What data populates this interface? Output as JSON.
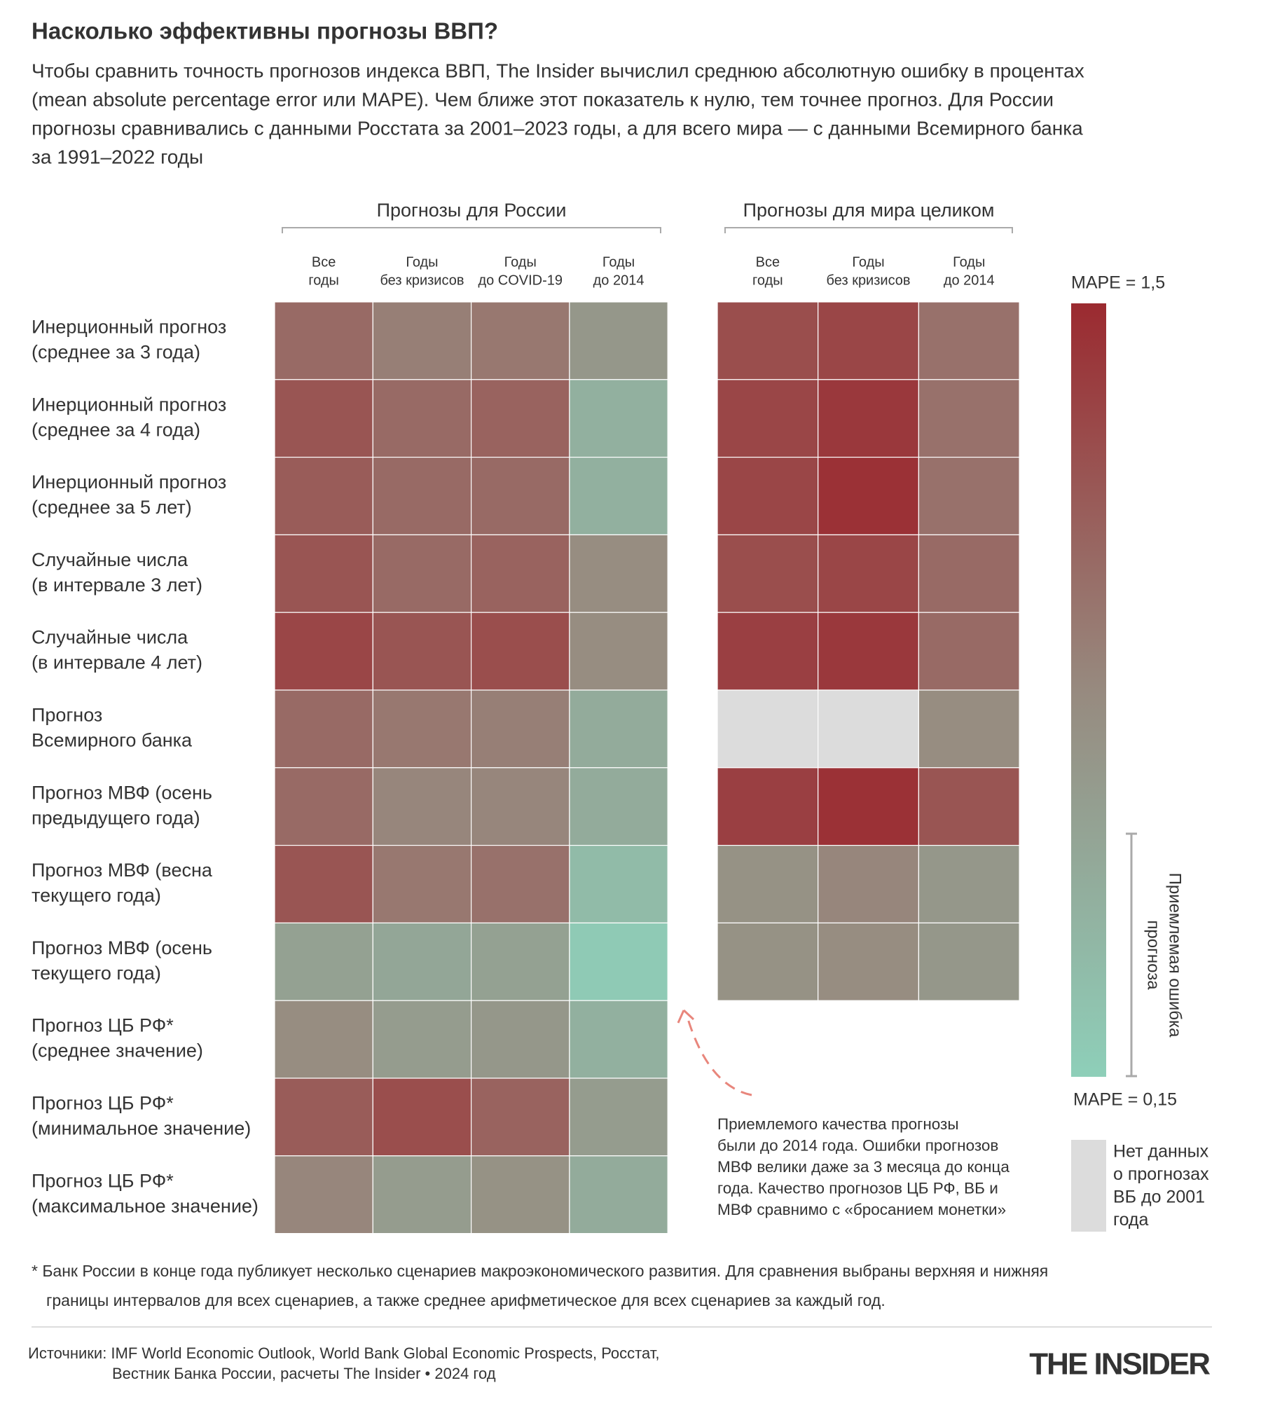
{
  "chart_data": {
    "type": "heatmap",
    "title": "Насколько эффективны прогнозы ВВП?",
    "subtitle": [
      "Чтобы сравнить точность прогнозов индекса ВВП, The Insider вычислил среднюю абсолютную ошибку в процентах",
      "(mean absolute percentage error или MAPE). Чем ближе этот показатель к нулю, тем точнее прогноз. Для России",
      "прогнозы сравнивались с данными Росстата за 2001–2023 годы, а для всего мира — с данными Всемирного банка",
      "за 1991–2022 годы"
    ],
    "row_labels": [
      [
        "Инерционный прогноз",
        "(среднее за 3 года)"
      ],
      [
        "Инерционный прогноз",
        "(среднее за 4 года)"
      ],
      [
        "Инерционный прогноз",
        "(среднее за 5 лет)"
      ],
      [
        "Случайные числа",
        "(в интервале 3 лет)"
      ],
      [
        "Случайные числа",
        "(в интервале 4 лет)"
      ],
      [
        "Прогноз",
        "Всемирного банка"
      ],
      [
        "Прогноз МВФ (осень",
        "предыдущего года)"
      ],
      [
        "Прогноз МВФ (весна",
        "текущего года)"
      ],
      [
        "Прогноз МВФ (осень",
        "текущего года)"
      ],
      [
        "Прогноз ЦБ РФ*",
        "(среднее значение)"
      ],
      [
        "Прогноз ЦБ РФ*",
        "(минимальное значение)"
      ],
      [
        "Прогноз ЦБ РФ*",
        "(максимальное значение)"
      ]
    ],
    "panels": [
      {
        "title": "Прогнозы для России",
        "columns": [
          [
            "Все",
            "годы"
          ],
          [
            "Годы",
            "без кризисов"
          ],
          [
            "Годы",
            "до COVID-19"
          ],
          [
            "Годы",
            "до 2014"
          ]
        ],
        "values": [
          [
            1.05,
            0.9,
            0.95,
            0.7
          ],
          [
            1.2,
            1.05,
            1.1,
            0.45
          ],
          [
            1.15,
            1.05,
            1.05,
            0.45
          ],
          [
            1.2,
            1.05,
            1.1,
            0.8
          ],
          [
            1.3,
            1.2,
            1.25,
            0.8
          ],
          [
            1.05,
            0.95,
            0.9,
            0.5
          ],
          [
            1.05,
            0.85,
            0.85,
            0.5
          ],
          [
            1.2,
            0.95,
            1.0,
            0.35
          ],
          [
            0.6,
            0.55,
            0.6,
            0.2
          ],
          [
            0.8,
            0.65,
            0.7,
            0.45
          ],
          [
            1.15,
            1.25,
            1.1,
            0.65
          ],
          [
            0.85,
            0.65,
            0.75,
            0.5
          ]
        ]
      },
      {
        "title": "Прогнозы для мира целиком",
        "columns": [
          [
            "Все",
            "годы"
          ],
          [
            "Годы",
            "без кризисов"
          ],
          [
            "Годы",
            "до 2014"
          ]
        ],
        "values": [
          [
            1.25,
            1.3,
            1.0
          ],
          [
            1.3,
            1.4,
            1.0
          ],
          [
            1.3,
            1.45,
            1.0
          ],
          [
            1.25,
            1.3,
            1.05
          ],
          [
            1.35,
            1.4,
            1.05
          ],
          [
            null,
            null,
            0.8
          ],
          [
            1.35,
            1.45,
            1.2
          ],
          [
            0.75,
            0.85,
            0.7
          ],
          [
            0.75,
            0.8,
            0.7
          ]
        ]
      }
    ],
    "colorbar": {
      "min": 0.15,
      "max": 1.5,
      "min_label": "MAPE = 0,15",
      "max_label": "MAPE = 1,5",
      "colors": [
        "#8ecfb9",
        "#978a7f",
        "#9b2a30"
      ],
      "no_data_color": "#dcdcdc",
      "no_data_label": [
        "Нет данных",
        "о прогнозах",
        "ВБ до 2001",
        "года"
      ],
      "bracket_label": [
        "Приемлемая ошибка",
        "прогноза"
      ]
    },
    "annotation": [
      "Приемлемого качества прогнозы",
      "были до 2014 года. Ошибки прогнозов",
      "МВФ велики даже за 3 месяца до конца",
      "года. Качество прогнозов ЦБ РФ, ВБ и",
      "МВФ сравнимо с «бросанием монетки»"
    ],
    "footnote": [
      "*  Банк России в конце года публикует несколько сценариев макроэкономического развития. Для сравнения выбраны верхняя и нижняя",
      "границы интервалов для всех сценариев, а также среднее арифметическое для всех сценариев за каждый год."
    ],
    "sources": [
      "Источники: IMF World Economic Outlook, World Bank Global Economic Prospects, Росстат,",
      "Вестник Банка России, расчеты The Insider • 2024 год"
    ],
    "brand": "THE INSIDER"
  }
}
